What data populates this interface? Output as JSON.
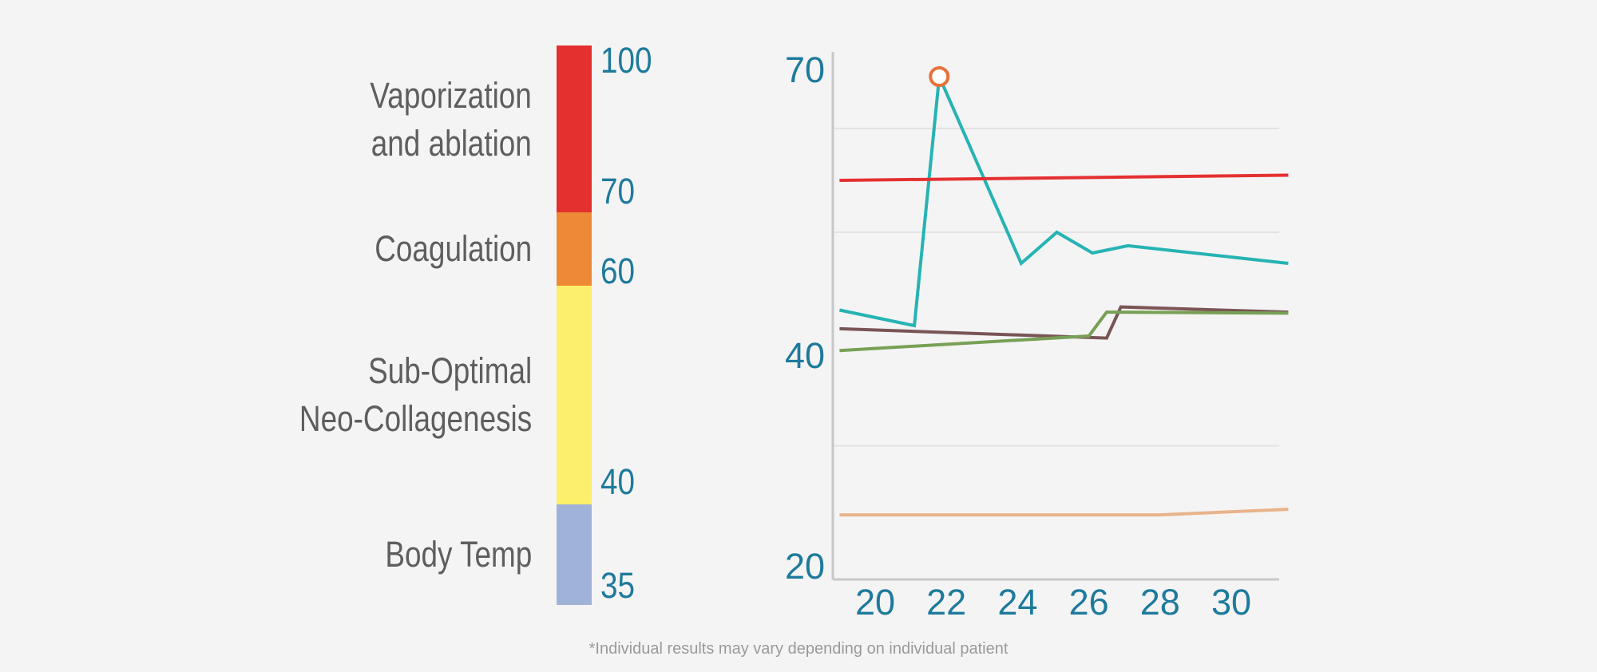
{
  "colors": {
    "background": "#f4f4f4",
    "label_text": "#5e5e5e",
    "axis_text": "#1e7a9c",
    "axis_line": "#c8c8c8",
    "grid": "#e3e3e3",
    "marker": "#e8703a"
  },
  "temperature_scale": {
    "zones": [
      {
        "label_lines": [
          "Vaporization",
          "and ablation"
        ],
        "from": 70,
        "to": 100,
        "color": "#e53030"
      },
      {
        "label_lines": [
          "Coagulation"
        ],
        "from": 60,
        "to": 70,
        "color": "#ee8a35"
      },
      {
        "label_lines": [
          "Sub-Optimal",
          "Neo-Collagenesis"
        ],
        "from": 40,
        "to": 60,
        "color": "#fcef6b"
      },
      {
        "label_lines": [
          "Body Temp"
        ],
        "from": 35,
        "to": 40,
        "color": "#a1b2d8"
      }
    ],
    "ticks": [
      "100",
      "70",
      "60",
      "40",
      "35"
    ]
  },
  "chart_data": {
    "type": "line",
    "xlabel": "",
    "ylabel": "",
    "xlim": [
      19,
      31.6
    ],
    "ylim": [
      20,
      70
    ],
    "x_ticks": [
      20,
      22,
      24,
      26,
      28,
      30
    ],
    "y_ticks": [
      20,
      40,
      70
    ],
    "grid": "horizontal",
    "gridlines_y": [
      62,
      52,
      32
    ],
    "series": [
      {
        "color": "#26b3b3",
        "x": [
          19,
          21.1,
          21.8,
          24.1,
          25.1,
          26.1,
          27.1,
          31.6
        ],
        "y": [
          44.5,
          43,
          67,
          49,
          52,
          50,
          50.7,
          49
        ]
      },
      {
        "color": "#e53030",
        "x": [
          19,
          31.6
        ],
        "y": [
          57,
          57.5
        ]
      },
      {
        "color": "#7a5555",
        "x": [
          19,
          26.5,
          26.9,
          31.6
        ],
        "y": [
          42.7,
          41.8,
          44.8,
          44.3
        ]
      },
      {
        "color": "#78a055",
        "x": [
          19,
          26,
          26.5,
          31.6
        ],
        "y": [
          40.6,
          42,
          44.3,
          44.2
        ]
      },
      {
        "color": "#eab38a",
        "x": [
          19,
          28,
          31.6
        ],
        "y": [
          25.8,
          25.8,
          26.3
        ]
      }
    ],
    "annotations": [
      {
        "type": "circle-marker",
        "x": 21.8,
        "y": 67,
        "color": "#e8703a"
      }
    ]
  },
  "footnote": "*Individual results may vary depending on individual patient"
}
